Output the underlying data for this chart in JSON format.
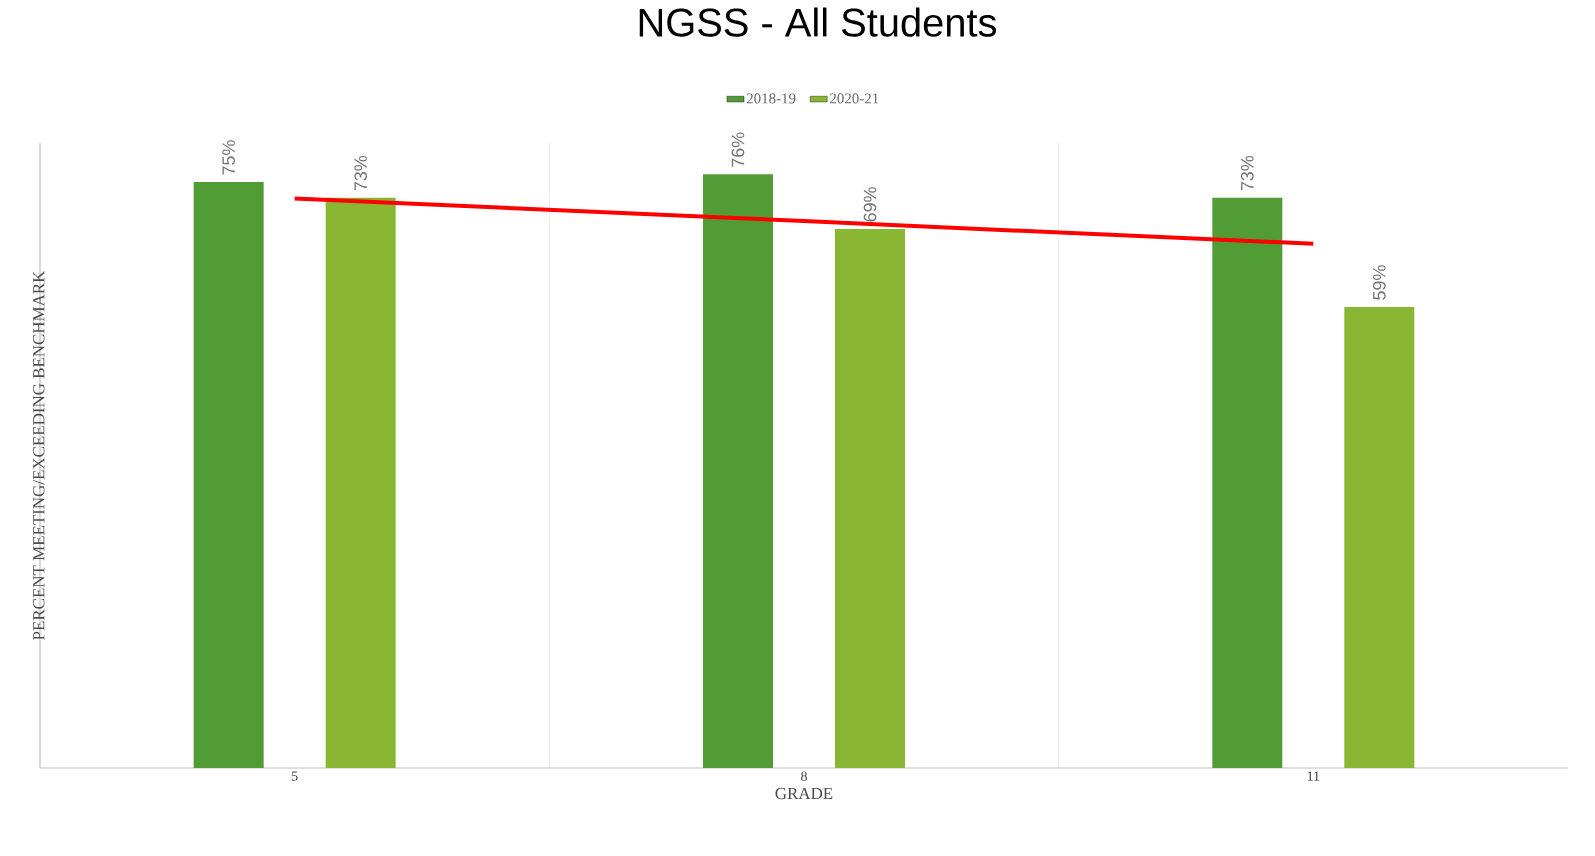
{
  "chart_data": {
    "type": "bar",
    "title": "NGSS - All Students",
    "xlabel": "GRADE",
    "ylabel": "PERCENT MEETING/EXCEEDING BENCHMARK",
    "categories": [
      "5",
      "8",
      "11"
    ],
    "ylim": [
      0,
      80
    ],
    "grid": "x",
    "legend": "top",
    "series": [
      {
        "name": "2018-19",
        "color": "#529c36",
        "values": [
          75,
          76,
          73
        ],
        "value_labels": [
          "75%",
          "76%",
          "73%"
        ]
      },
      {
        "name": "2020-21",
        "color": "#8ab733",
        "values": [
          73,
          69,
          59
        ],
        "value_labels": [
          "73%",
          "69%",
          "59%"
        ]
      },
      {
        "type": "line",
        "color": "#ff0000",
        "values": [
          72.9,
          70.0,
          67.1
        ]
      }
    ]
  }
}
